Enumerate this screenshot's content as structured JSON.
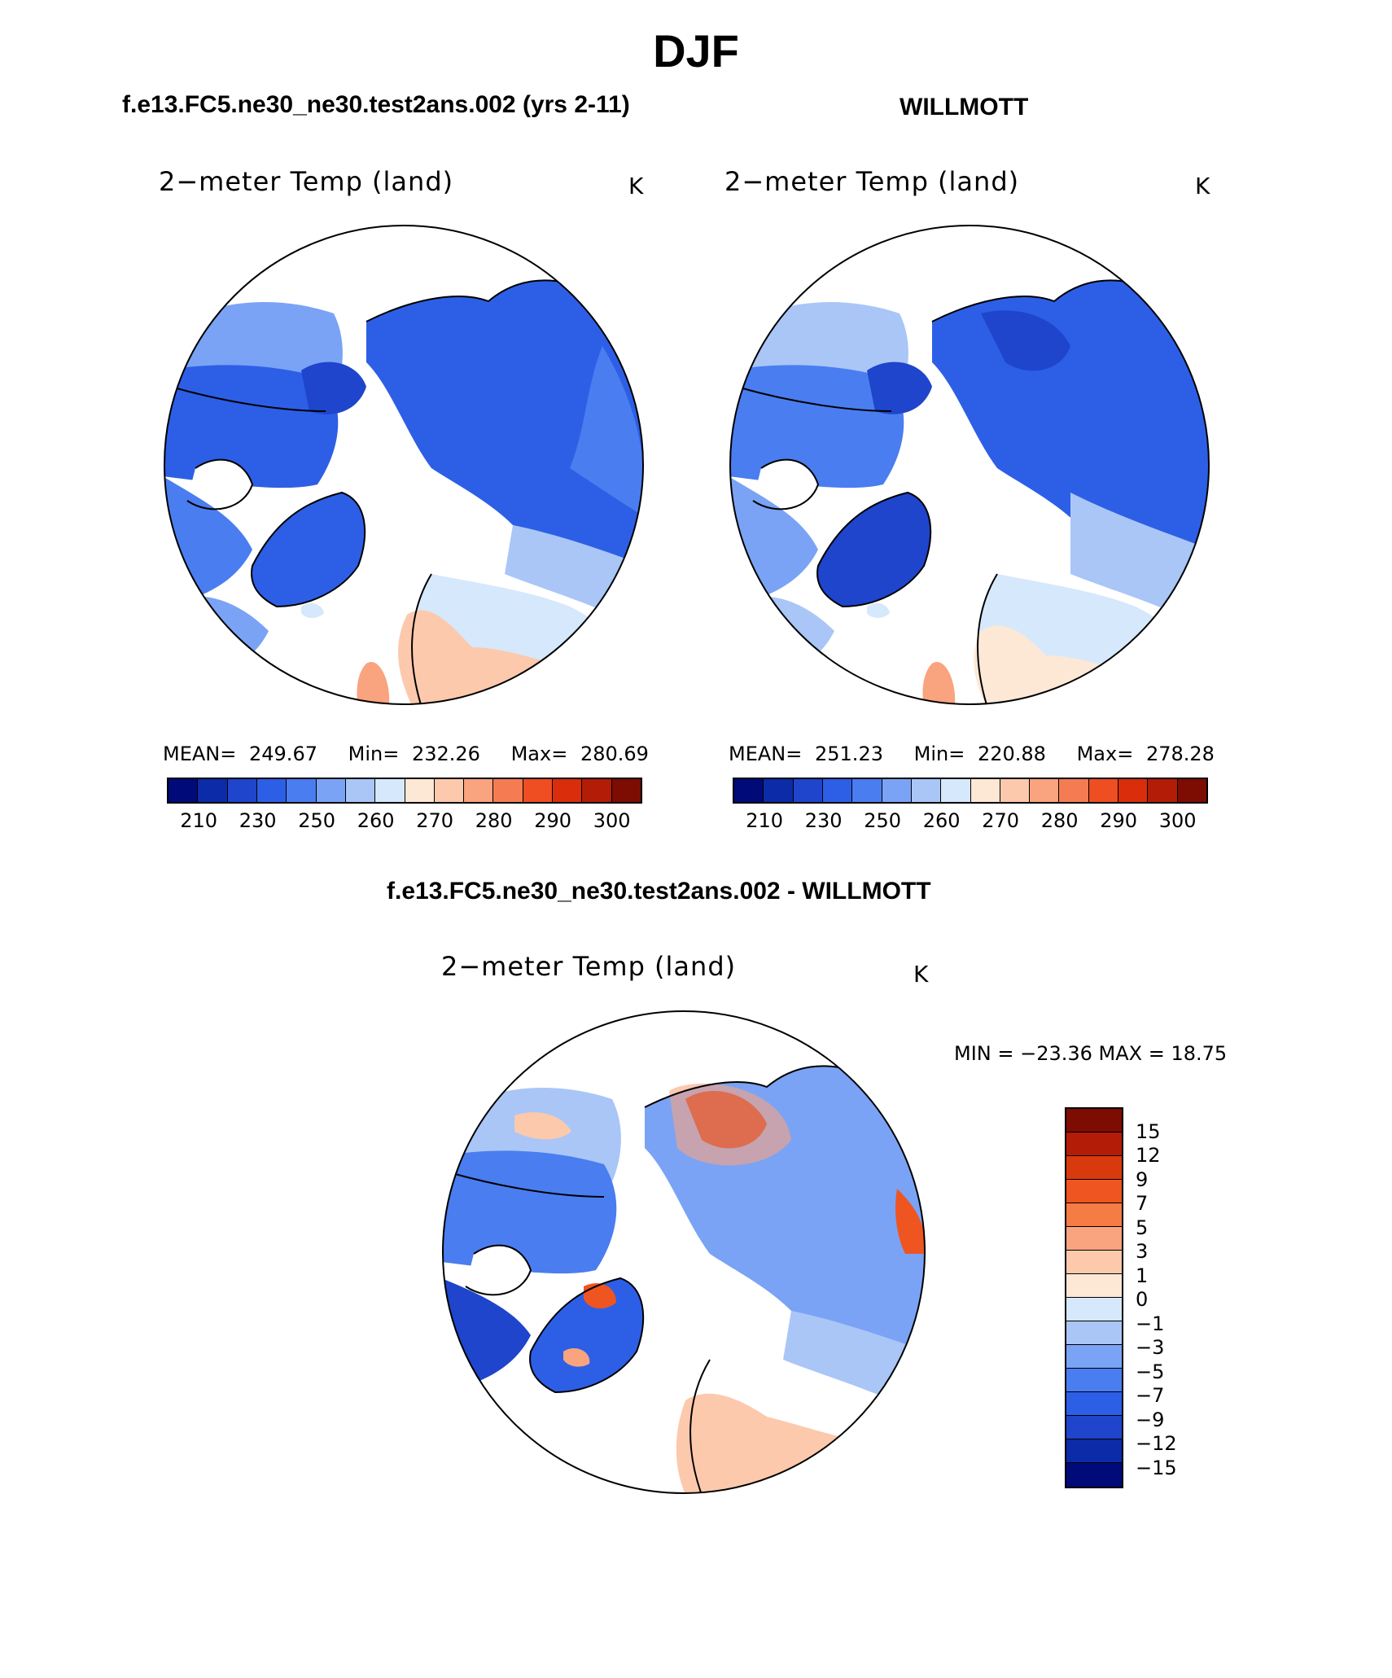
{
  "title": "DJF",
  "panels": [
    {
      "case": "f.e13.FC5.ne30_ne30.test2ans.002 (yrs 2-11)",
      "variable": "2−meter Temp (land)",
      "unit": "K",
      "stats": {
        "mean_label": "MEAN=",
        "mean": "249.67",
        "min_label": "Min=",
        "min": "232.26",
        "max_label": "Max=",
        "max": "280.69"
      }
    },
    {
      "case": "WILLMOTT",
      "variable": "2−meter Temp (land)",
      "unit": "K",
      "stats": {
        "mean_label": "MEAN=",
        "mean": "251.23",
        "min_label": "Min=",
        "min": "220.88",
        "max_label": "Max=",
        "max": "278.28"
      }
    }
  ],
  "diff": {
    "case": "f.e13.FC5.ne30_ne30.test2ans.002 - WILLMOTT",
    "variable": "2−meter Temp (land)",
    "unit": "K",
    "minmax": "MIN = −23.36 MAX =   18.75"
  },
  "colorbar_abs": {
    "colors": [
      "#000a78",
      "#0b2ba8",
      "#1e45cc",
      "#2d5fe6",
      "#4a7df0",
      "#7aa3f5",
      "#a9c6f7",
      "#d6e8fb",
      "#fde8d6",
      "#fcc9ad",
      "#f9a37f",
      "#f57c52",
      "#ee4e22",
      "#d92d0c",
      "#b31c06",
      "#7d0c02"
    ],
    "ticks": [
      "210",
      "230",
      "250",
      "260",
      "270",
      "280",
      "290",
      "300"
    ]
  },
  "colorbar_diff": {
    "colors": [
      "#7d0c02",
      "#b31c06",
      "#d93a0d",
      "#ee5520",
      "#f57c45",
      "#f9a37f",
      "#fcc9ad",
      "#fde8d6",
      "#d6e8fb",
      "#a9c6f7",
      "#7aa3f5",
      "#4a7df0",
      "#2d5fe6",
      "#1e45cc",
      "#0b2ba8",
      "#000a78"
    ],
    "ticks": [
      "15",
      "12",
      "9",
      "7",
      "5",
      "3",
      "1",
      "0",
      "−1",
      "−3",
      "−5",
      "−7",
      "−9",
      "−12",
      "−15"
    ]
  },
  "palette": {
    "ocean": "#ffffff",
    "cold": "#2d5fe6",
    "cool": "#7aa3f5",
    "mild": "#d6e8fb",
    "warm": "#fcc9ad",
    "deep": "#1e45cc"
  }
}
